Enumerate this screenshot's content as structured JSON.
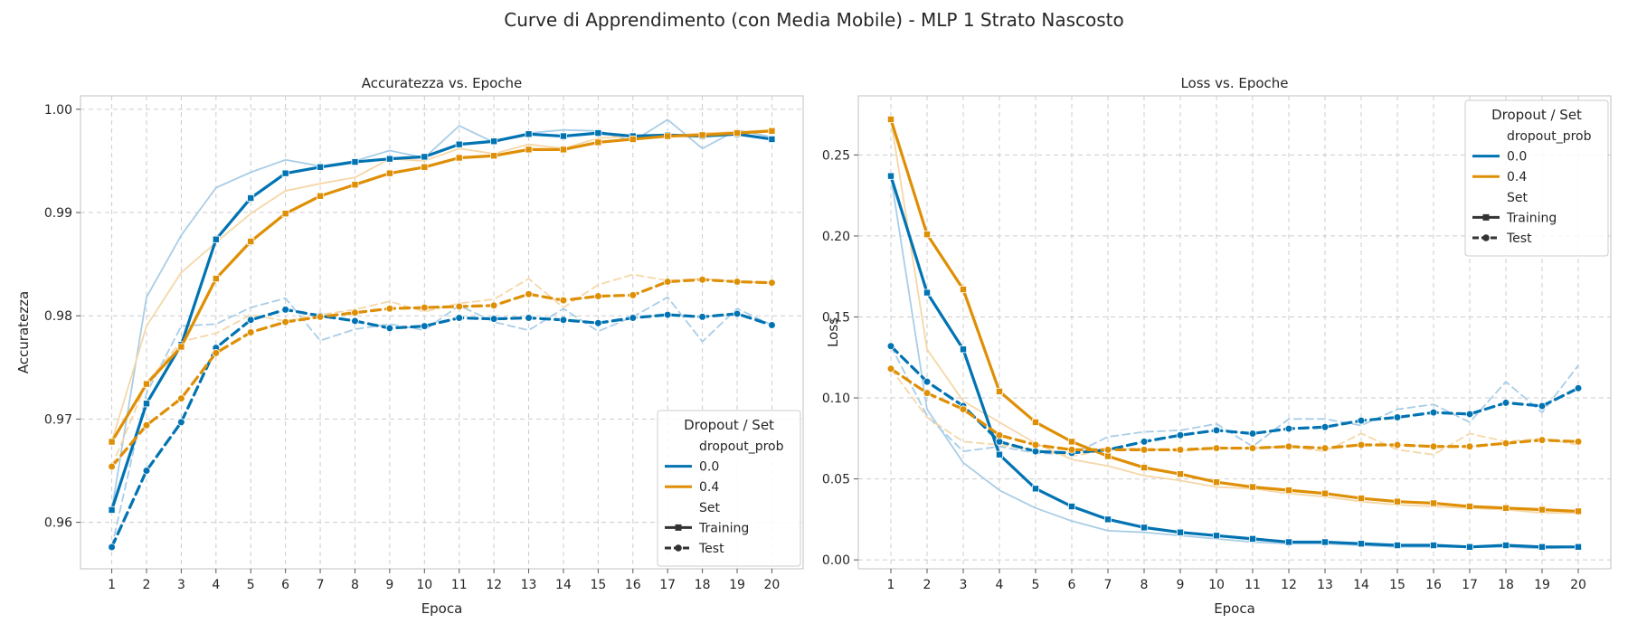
{
  "figure_title": "Curve di Apprendimento (con Media Mobile) - MLP 1 Strato Nascosto",
  "colors": {
    "d00": "#0173b2",
    "d04": "#de8f05",
    "d00_light": "#a9cde6",
    "d04_light": "#f5d7a8",
    "grid": "#cccccc",
    "frame": "#cccccc"
  },
  "legend": {
    "title": "Dropout / Set",
    "group1": "dropout_prob",
    "group2": "Set",
    "labels": {
      "d00": "0.0",
      "d04": "0.4",
      "train": "Training",
      "test": "Test"
    }
  },
  "chart_data": [
    {
      "type": "line",
      "title": "Accuratezza vs. Epoche",
      "xlabel": "Epoca",
      "ylabel": "Accuratezza",
      "x": [
        1,
        2,
        3,
        4,
        5,
        6,
        7,
        8,
        9,
        10,
        11,
        12,
        13,
        14,
        15,
        16,
        17,
        18,
        19,
        20
      ],
      "xlim": [
        0.1,
        20.9
      ],
      "ylim": [
        0.9555,
        1.0013
      ],
      "yticks": [
        0.96,
        0.97,
        0.98,
        0.99,
        1.0
      ],
      "ytick_labels": [
        "0.96",
        "0.97",
        "0.98",
        "0.99",
        "1.00"
      ],
      "grid": true,
      "legend_position": "lower right",
      "series": [
        {
          "name": "0.0",
          "set": "Training",
          "kind": "smoothed",
          "values": [
            0.9612,
            0.9715,
            0.9772,
            0.9874,
            0.9914,
            0.9938,
            0.9944,
            0.9949,
            0.9952,
            0.9954,
            0.9966,
            0.9969,
            0.9976,
            0.9974,
            0.9977,
            0.9974,
            0.9975,
            0.9974,
            0.9976,
            0.9971
          ]
        },
        {
          "name": "0.4",
          "set": "Training",
          "kind": "smoothed",
          "values": [
            0.9678,
            0.9734,
            0.977,
            0.9836,
            0.9872,
            0.9899,
            0.9916,
            0.9927,
            0.9938,
            0.9944,
            0.9953,
            0.9955,
            0.9961,
            0.9961,
            0.9968,
            0.9971,
            0.9974,
            0.9975,
            0.9977,
            0.9979
          ]
        },
        {
          "name": "0.0",
          "set": "Test",
          "kind": "smoothed",
          "values": [
            0.9576,
            0.965,
            0.9697,
            0.9769,
            0.9796,
            0.9806,
            0.98,
            0.9795,
            0.9788,
            0.979,
            0.9798,
            0.9797,
            0.9798,
            0.9796,
            0.9793,
            0.9798,
            0.9801,
            0.9799,
            0.9802,
            0.9791
          ]
        },
        {
          "name": "0.4",
          "set": "Test",
          "kind": "smoothed",
          "values": [
            0.9654,
            0.9694,
            0.972,
            0.9764,
            0.9784,
            0.9794,
            0.9799,
            0.9803,
            0.9807,
            0.9808,
            0.9809,
            0.981,
            0.9821,
            0.9815,
            0.9819,
            0.982,
            0.9833,
            0.9835,
            0.9833,
            0.9832
          ]
        },
        {
          "name": "0.0",
          "set": "Training",
          "kind": "raw",
          "values": [
            0.9612,
            0.9818,
            0.9878,
            0.9924,
            0.9939,
            0.9951,
            0.9945,
            0.995,
            0.996,
            0.9953,
            0.9984,
            0.9968,
            0.9977,
            0.998,
            0.9979,
            0.9969,
            0.999,
            0.9962,
            0.998,
            0.9973
          ]
        },
        {
          "name": "0.4",
          "set": "Training",
          "kind": "raw",
          "values": [
            0.9678,
            0.979,
            0.9842,
            0.9871,
            0.9899,
            0.9921,
            0.9928,
            0.9934,
            0.9952,
            0.995,
            0.9962,
            0.9957,
            0.9966,
            0.9962,
            0.9972,
            0.9974,
            0.9974,
            0.9977,
            0.9978,
            0.998
          ]
        },
        {
          "name": "0.0",
          "set": "Test",
          "kind": "raw",
          "values": [
            0.9576,
            0.9725,
            0.979,
            0.9792,
            0.9808,
            0.9817,
            0.9776,
            0.9787,
            0.9792,
            0.9786,
            0.981,
            0.9794,
            0.9786,
            0.9807,
            0.9785,
            0.9799,
            0.9818,
            0.9775,
            0.9807,
            0.9791
          ]
        },
        {
          "name": "0.4",
          "set": "Test",
          "kind": "raw",
          "values": [
            0.9654,
            0.9735,
            0.9775,
            0.9783,
            0.9801,
            0.9795,
            0.9801,
            0.9806,
            0.9814,
            0.9804,
            0.9812,
            0.9816,
            0.9836,
            0.9808,
            0.983,
            0.984,
            0.9834,
            0.9836,
            0.9833,
            0.9832
          ]
        }
      ]
    },
    {
      "type": "line",
      "title": "Loss vs. Epoche",
      "xlabel": "Epoca",
      "ylabel": "Loss",
      "x": [
        1,
        2,
        3,
        4,
        5,
        6,
        7,
        8,
        9,
        10,
        11,
        12,
        13,
        14,
        15,
        16,
        17,
        18,
        19,
        20
      ],
      "xlim": [
        0.1,
        20.9
      ],
      "ylim": [
        -0.0055,
        0.2865
      ],
      "yticks": [
        0.0,
        0.05,
        0.1,
        0.15,
        0.2,
        0.25
      ],
      "ytick_labels": [
        "0.00",
        "0.05",
        "0.10",
        "0.15",
        "0.20",
        "0.25"
      ],
      "grid": true,
      "legend_position": "upper right",
      "series": [
        {
          "name": "0.0",
          "set": "Training",
          "kind": "smoothed",
          "values": [
            0.237,
            0.165,
            0.13,
            0.065,
            0.044,
            0.033,
            0.025,
            0.02,
            0.017,
            0.015,
            0.013,
            0.011,
            0.011,
            0.01,
            0.009,
            0.009,
            0.008,
            0.009,
            0.008,
            0.008
          ]
        },
        {
          "name": "0.4",
          "set": "Training",
          "kind": "smoothed",
          "values": [
            0.272,
            0.201,
            0.167,
            0.104,
            0.085,
            0.073,
            0.064,
            0.057,
            0.053,
            0.048,
            0.045,
            0.043,
            0.041,
            0.038,
            0.036,
            0.035,
            0.033,
            0.032,
            0.031,
            0.03
          ]
        },
        {
          "name": "0.0",
          "set": "Test",
          "kind": "smoothed",
          "values": [
            0.132,
            0.11,
            0.095,
            0.073,
            0.067,
            0.066,
            0.068,
            0.073,
            0.077,
            0.08,
            0.078,
            0.081,
            0.082,
            0.086,
            0.088,
            0.091,
            0.09,
            0.097,
            0.095,
            0.106
          ]
        },
        {
          "name": "0.4",
          "set": "Test",
          "kind": "smoothed",
          "values": [
            0.118,
            0.103,
            0.093,
            0.077,
            0.071,
            0.068,
            0.068,
            0.068,
            0.068,
            0.069,
            0.069,
            0.07,
            0.069,
            0.071,
            0.071,
            0.07,
            0.07,
            0.072,
            0.074,
            0.073
          ]
        },
        {
          "name": "0.0",
          "set": "Training",
          "kind": "raw",
          "values": [
            0.237,
            0.093,
            0.06,
            0.043,
            0.032,
            0.024,
            0.018,
            0.017,
            0.015,
            0.013,
            0.011,
            0.01,
            0.01,
            0.009,
            0.008,
            0.008,
            0.008,
            0.008,
            0.007,
            0.008
          ]
        },
        {
          "name": "0.4",
          "set": "Training",
          "kind": "raw",
          "values": [
            0.272,
            0.13,
            0.098,
            0.085,
            0.072,
            0.062,
            0.058,
            0.052,
            0.049,
            0.045,
            0.044,
            0.041,
            0.039,
            0.036,
            0.034,
            0.033,
            0.032,
            0.031,
            0.029,
            0.029
          ]
        },
        {
          "name": "0.0",
          "set": "Test",
          "kind": "raw",
          "values": [
            0.132,
            0.089,
            0.067,
            0.07,
            0.066,
            0.065,
            0.076,
            0.079,
            0.08,
            0.084,
            0.07,
            0.087,
            0.087,
            0.083,
            0.093,
            0.096,
            0.085,
            0.11,
            0.091,
            0.12
          ]
        },
        {
          "name": "0.4",
          "set": "Test",
          "kind": "raw",
          "values": [
            0.118,
            0.088,
            0.073,
            0.071,
            0.068,
            0.064,
            0.068,
            0.069,
            0.067,
            0.069,
            0.069,
            0.07,
            0.067,
            0.078,
            0.068,
            0.065,
            0.078,
            0.073,
            0.075,
            0.071
          ]
        }
      ]
    }
  ]
}
